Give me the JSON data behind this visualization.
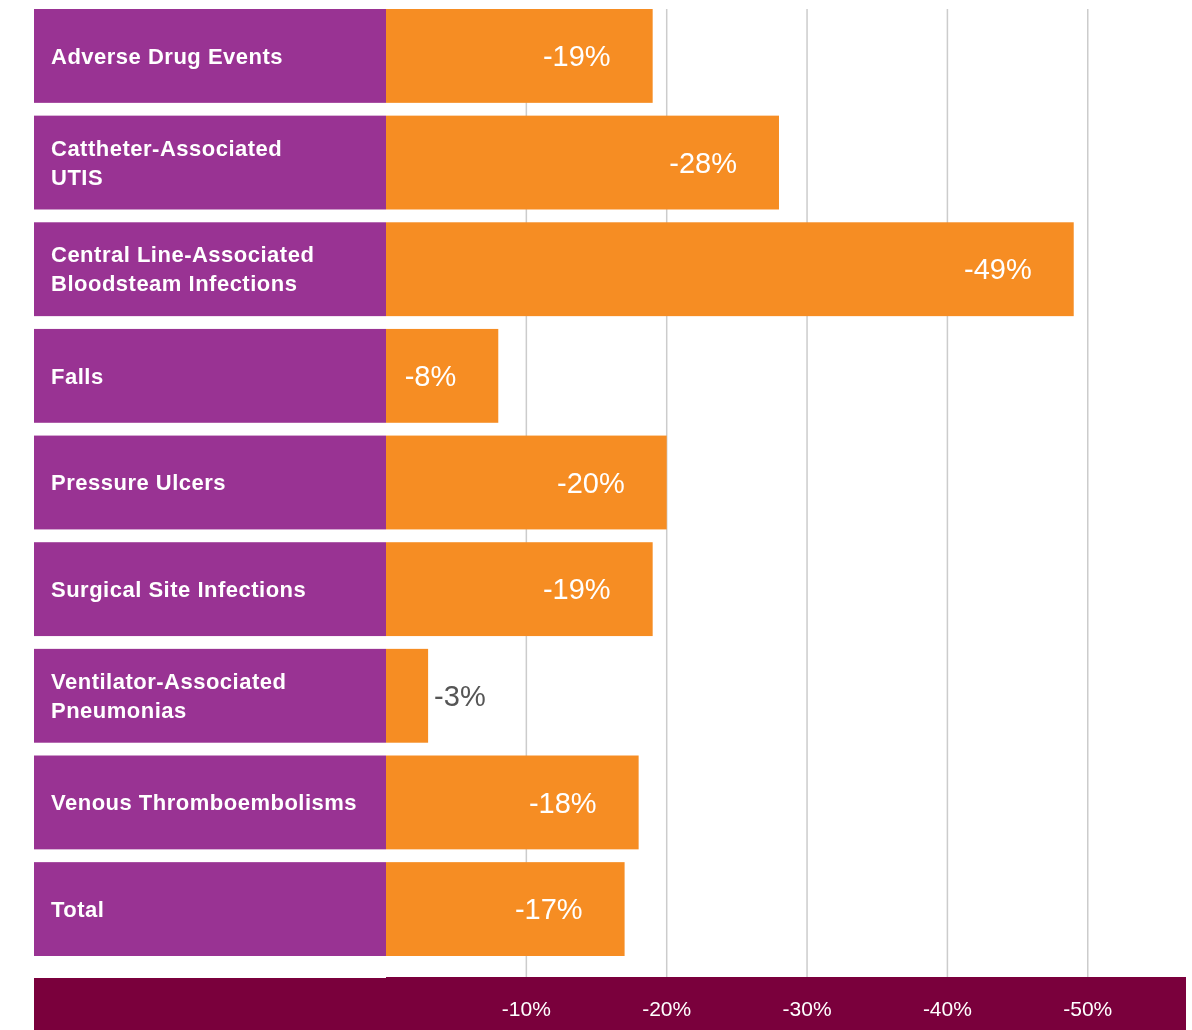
{
  "chart_data": {
    "type": "bar",
    "orientation": "horizontal",
    "categories": [
      "Adverse Drug Events",
      "Cattheter-Associated UTIS",
      "Central Line-Associated Bloodsteam Infections",
      "Falls",
      "Pressure Ulcers",
      "Surgical Site Infections",
      "Ventilator-Associated Pneumonias",
      "Venous Thromboembolisms",
      "Total"
    ],
    "values": [
      -19,
      -28,
      -49,
      -8,
      -20,
      -19,
      -3,
      -18,
      -17
    ],
    "value_labels": [
      "-19%",
      "-28%",
      "-49%",
      "-8%",
      "-20%",
      "-19%",
      "-3%",
      "-18%",
      "-17%"
    ],
    "color": "#f68d23",
    "xlim": [
      0,
      -57
    ],
    "xticks": [
      {
        "value": -10,
        "label": "-10%"
      },
      {
        "value": -20,
        "label": "-20%"
      },
      {
        "value": -30,
        "label": "-30%"
      },
      {
        "value": -40,
        "label": "-40%"
      },
      {
        "value": -50,
        "label": "-50%"
      }
    ],
    "grid": "x"
  }
}
